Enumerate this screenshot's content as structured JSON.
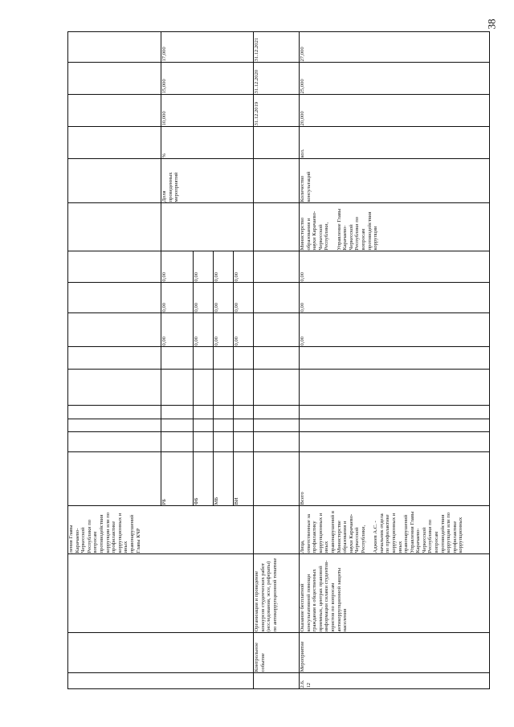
{
  "page_number": "38",
  "rows": {
    "r0_responsible_cont": "ления Главы Карачаево-Черкесской Республики по вопросам противодействия коррупции или по профилактике коррупционных и иных правонарушений Главы КЧР",
    "funding": [
      {
        "source": "РБ",
        "v1": "0,00",
        "v2": "0,00",
        "v3": "0,00"
      },
      {
        "source": "ФБ",
        "v1": "0,00",
        "v2": "0,00",
        "v3": "0,00"
      },
      {
        "source": "МБ",
        "v1": "0,00",
        "v2": "0,00",
        "v3": "0,00"
      },
      {
        "source": "ВИ",
        "v1": "0,00",
        "v2": "0,00",
        "v3": "0,00"
      }
    ],
    "indicator_1": {
      "name": "Доля проведенных мероприятий",
      "unit": "%",
      "y2019": "10,000",
      "y2020": "15,000",
      "y2021": "17,000"
    },
    "control_event": {
      "type": "Контрольное событие",
      "description": "Организация и проведение конкурсов студенческих работ (исследования, эссе, рефераты) по антикоррупционной тематике",
      "d2019": "31.12.2019",
      "d2020": "31.12.2020",
      "d2021": "31.12.2021"
    },
    "measure": {
      "number": "2.6.\n12",
      "type": "Мероприятие",
      "description": "Оказание бесплатной консультативной помощи гражданам в общественных приемных, центрах правовой информации силами студентов-юристов по вопросам антикоррупционной защиты населения",
      "responsible": "Лица, ответственные за профилактику коррупционных и иных правонарушений в Министерстве образования и науки Карачаево-Черкесской Республики,\n\nАджиев А.С. - начальник отдела по профилактике коррупционных и иных правонарушений Управления Главы Карачаево-Черкесской Республики по вопросам противодействия коррупции или по профилактике коррупционных",
      "funding_label": "Всего",
      "v1": "0,00",
      "v2": "0,00",
      "v3": "0,00",
      "executor": "Министерство образования и науки Карачаево-Черкесской Республики,\n\nУправление Главы Карачаево-Черкесской Республики по вопросам противодействия коррупции",
      "indicator": "Количество консультаций",
      "unit": "кол.",
      "y2019": "20,000",
      "y2020": "25,000",
      "y2021": "27,000"
    }
  }
}
